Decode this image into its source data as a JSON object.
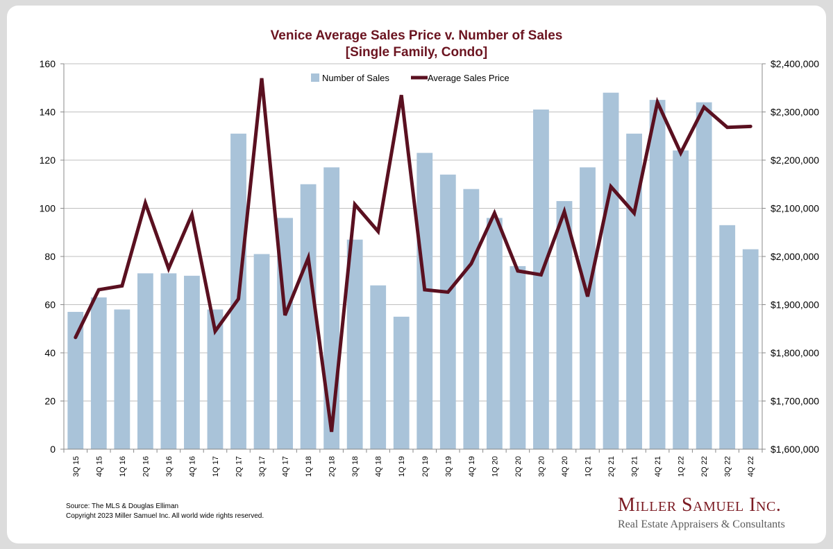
{
  "header": {
    "title_line1": "Venice Average Sales Price v. Number of Sales",
    "title_line2": "[Single Family, Condo]"
  },
  "footer": {
    "source": "Source: The MLS & Douglas Elliman",
    "copyright": "Copyright 2023 Miller Samuel Inc.  All world wide rights reserved."
  },
  "logo": {
    "name": "Miller Samuel Inc.",
    "tagline": "Real Estate Appraisers & Consultants"
  },
  "colors": {
    "bar": "#a9c3d9",
    "line": "#5a1020",
    "title": "#6b1420",
    "grid": "#bfbfbf"
  },
  "chart_data": {
    "type": "bar",
    "title": "Venice Average Sales Price v. Number of Sales",
    "subtitle": "[Single Family, Condo]",
    "categories": [
      "3Q 15",
      "4Q 15",
      "1Q 16",
      "2Q 16",
      "3Q 16",
      "4Q 16",
      "1Q 17",
      "2Q 17",
      "3Q 17",
      "4Q 17",
      "1Q 18",
      "2Q 18",
      "3Q 18",
      "4Q 18",
      "1Q 19",
      "2Q 19",
      "3Q 19",
      "4Q 19",
      "1Q 20",
      "2Q 20",
      "3Q 20",
      "4Q 20",
      "1Q 21",
      "2Q 21",
      "3Q 21",
      "4Q 21",
      "1Q 22",
      "2Q 22",
      "3Q 22",
      "4Q 22"
    ],
    "series": [
      {
        "name": "Number of Sales",
        "type": "bar",
        "axis": "left",
        "values": [
          57,
          63,
          58,
          73,
          73,
          72,
          58,
          131,
          81,
          96,
          110,
          117,
          87,
          68,
          55,
          123,
          114,
          108,
          96,
          76,
          141,
          103,
          117,
          148,
          131,
          145,
          124,
          144,
          93,
          83
        ]
      },
      {
        "name": "Average Sales Price",
        "type": "line",
        "axis": "right",
        "values": [
          1832000,
          1931000,
          1939000,
          2111000,
          1975000,
          2087000,
          1845000,
          1912000,
          2370000,
          1878000,
          1997000,
          1636000,
          2108000,
          2052000,
          2335000,
          1931000,
          1926000,
          1985000,
          2090000,
          1970000,
          1962000,
          2093000,
          1917000,
          2145000,
          2090000,
          2320000,
          2215000,
          2310000,
          2268000,
          2270000
        ]
      }
    ],
    "y_left": {
      "min": 0,
      "max": 160,
      "step": 20,
      "ticks": [
        "0",
        "20",
        "40",
        "60",
        "80",
        "100",
        "120",
        "140",
        "160"
      ]
    },
    "y_right": {
      "min": 1600000,
      "max": 2400000,
      "step": 100000,
      "ticks": [
        "$1,600,000",
        "$1,700,000",
        "$1,800,000",
        "$1,900,000",
        "$2,000,000",
        "$2,100,000",
        "$2,200,000",
        "$2,300,000",
        "$2,400,000"
      ]
    },
    "grid": true,
    "legend": {
      "position": "top-center",
      "entries": [
        "Number of Sales",
        "Average Sales Price"
      ]
    }
  }
}
